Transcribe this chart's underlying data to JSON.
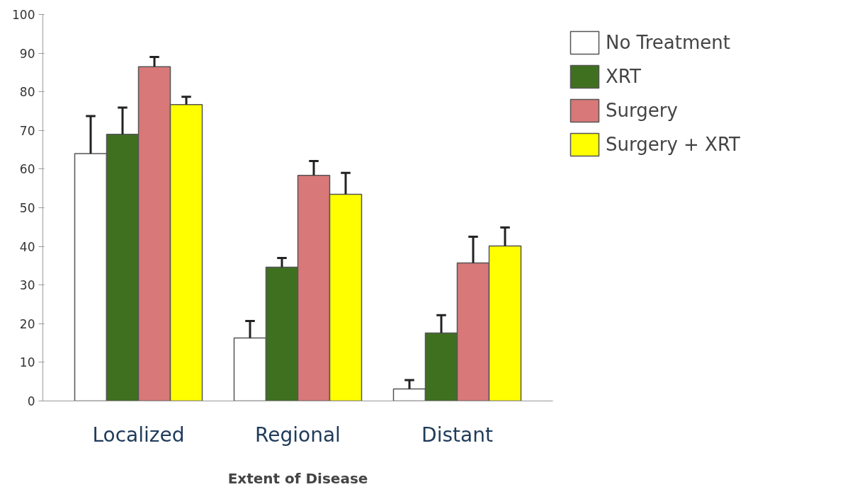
{
  "chart_data": {
    "type": "bar",
    "xlabel": "Extent of Disease",
    "categories": [
      "Localized",
      "Regional",
      "Distant"
    ],
    "series": [
      {
        "name": "No Treatment",
        "color": "#ffffff",
        "values": [
          64,
          16.3,
          3.1
        ],
        "errors": [
          [
            64,
            73.7
          ],
          [
            16.3,
            20.7
          ],
          [
            3.1,
            5.4
          ]
        ]
      },
      {
        "name": "XRT",
        "color": "#3f7020",
        "values": [
          69,
          34.6,
          17.6
        ],
        "errors": [
          [
            69,
            75.9
          ],
          [
            34.6,
            37
          ],
          [
            17.6,
            22.2
          ]
        ]
      },
      {
        "name": "Surgery",
        "color": "#d87878",
        "values": [
          86.5,
          58.4,
          35.7
        ],
        "errors": [
          [
            86.5,
            89
          ],
          [
            58.4,
            62.1
          ],
          [
            35.7,
            42.5
          ]
        ]
      },
      {
        "name": "Surgery + XRT",
        "color": "#ffff00",
        "values": [
          76.7,
          53.5,
          40.1
        ],
        "errors": [
          [
            76.7,
            78.7
          ],
          [
            53.5,
            59
          ],
          [
            40.1,
            44.9
          ]
        ]
      }
    ],
    "ylim": [
      0,
      100
    ],
    "yticks": [
      0,
      10,
      20,
      30,
      40,
      50,
      60,
      70,
      80,
      90,
      100
    ],
    "grid": false,
    "legend": "top right"
  }
}
